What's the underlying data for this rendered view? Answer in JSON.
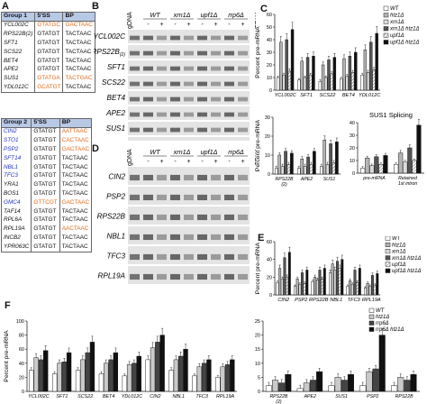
{
  "panel_labels": {
    "A": "A",
    "B": "B",
    "C": "C",
    "D": "D",
    "E": "E",
    "F": "F"
  },
  "table_group1": {
    "headers": [
      "Group 1",
      "5'SS",
      "BP"
    ],
    "rows": [
      {
        "gene": "YCL002C",
        "ss": "GTATGC",
        "bp": "GACTAAC",
        "g": "n",
        "s": "o",
        "b": "o"
      },
      {
        "gene": "RPS22B(2)",
        "ss": "GTATGT",
        "bp": "TACTAAC",
        "g": "n",
        "s": "n",
        "b": "n"
      },
      {
        "gene": "SFT1",
        "ss": "GTATGT",
        "bp": "TACTAAC",
        "g": "n",
        "s": "n",
        "b": "n"
      },
      {
        "gene": "SCS22",
        "ss": "GTATGT",
        "bp": "TACTAAC",
        "g": "n",
        "s": "n",
        "b": "n"
      },
      {
        "gene": "BET4",
        "ss": "GTATGT",
        "bp": "TACTAAC",
        "g": "n",
        "s": "n",
        "b": "n"
      },
      {
        "gene": "APE2",
        "ss": "GTATGT",
        "bp": "TACTAAC",
        "g": "n",
        "s": "n",
        "b": "n"
      },
      {
        "gene": "SUS1",
        "ss": "GTATGA",
        "bp": "TACTGAC",
        "g": "n",
        "s": "o",
        "b": "o"
      },
      {
        "gene": "YDL012C",
        "ss": "GCATGT",
        "bp": "TACTAAC",
        "g": "n",
        "s": "o",
        "b": "n"
      }
    ]
  },
  "table_group2": {
    "headers": [
      "Group 2",
      "5'SS",
      "BP"
    ],
    "rows": [
      {
        "gene": "CIN2",
        "ss": "GTATGT",
        "bp": "AATTAAC",
        "g": "b",
        "s": "n",
        "b": "o"
      },
      {
        "gene": "STO1",
        "ss": "GTATGT",
        "bp": "CACTAAC",
        "g": "b",
        "s": "n",
        "b": "o"
      },
      {
        "gene": "PSP2",
        "ss": "GTATGT",
        "bp": "GACTAAC",
        "g": "b",
        "s": "n",
        "b": "o"
      },
      {
        "gene": "SFT14",
        "ss": "GTATGT",
        "bp": "TACTAAC",
        "g": "b",
        "s": "n",
        "b": "n"
      },
      {
        "gene": "NBL1",
        "ss": "GTATGT",
        "bp": "TACTAAC",
        "g": "b",
        "s": "n",
        "b": "n"
      },
      {
        "gene": "TFC3",
        "ss": "GTATGT",
        "bp": "TACTAAC",
        "g": "b",
        "s": "n",
        "b": "n"
      },
      {
        "gene": "YRA1",
        "ss": "GTATGT",
        "bp": "TACTAAC",
        "g": "n",
        "s": "n",
        "b": "n"
      },
      {
        "gene": "BOS1",
        "ss": "GTATGT",
        "bp": "TACTAAC",
        "g": "n",
        "s": "n",
        "b": "n"
      },
      {
        "gene": "GMC4",
        "ss": "GTTCGT",
        "bp": "GACTAAC",
        "g": "b",
        "s": "o",
        "b": "o"
      },
      {
        "gene": "TAF14",
        "ss": "GTATGT",
        "bp": "TACTAAC",
        "g": "n",
        "s": "n",
        "b": "n"
      },
      {
        "gene": "RPL6A",
        "ss": "GTATGT",
        "bp": "TACTAAC",
        "g": "n",
        "s": "n",
        "b": "n"
      },
      {
        "gene": "RPL19A",
        "ss": "GTATGT",
        "bp": "AACTAAC",
        "g": "n",
        "s": "n",
        "b": "o"
      },
      {
        "gene": "INCB2",
        "ss": "GTATGT",
        "bp": "TACTAAC",
        "g": "n",
        "s": "n",
        "b": "n"
      },
      {
        "gene": "YPR063C",
        "ss": "GTATGT",
        "bp": "TACTAAC",
        "g": "n",
        "s": "n",
        "b": "n"
      }
    ]
  },
  "gel_B": {
    "genes": [
      "YCL002C",
      "RPS22B",
      "SFT1",
      "SCS22",
      "BET4",
      "APE2",
      "SUS1",
      "YDL012C"
    ],
    "subscript_rps": "(2)",
    "col_labels": [
      "gDNA",
      "WT",
      "xrn1Δ",
      "upf1Δ",
      "rrp6Δ"
    ],
    "pm": [
      "-",
      "+",
      "-",
      "+",
      "-",
      "+",
      "-",
      "+"
    ],
    "htz_label": "HTZ1"
  },
  "gel_D": {
    "genes": [
      "CIN2",
      "PSP2",
      "RPS22B",
      "NBL1",
      "TFC3",
      "RPL19A"
    ],
    "col_labels": [
      "gDNA",
      "WT",
      "xrn1Δ",
      "upf1Δ",
      "rrp6Δ"
    ],
    "pm": [
      "-",
      "+",
      "-",
      "+",
      "-",
      "+",
      "-",
      "+"
    ],
    "htz_label": "HTZ1"
  },
  "chart_data": [
    {
      "id": "C-top",
      "type": "bar",
      "ylabel": "Percent pre-mRNA",
      "ylim": [
        0,
        60
      ],
      "yticks": [
        0,
        10,
        20,
        30,
        40,
        50,
        60
      ],
      "categories": [
        "YCL002C",
        "SFT1",
        "SCS22",
        "BET4",
        "YDL012C"
      ],
      "legend_position": "top-right",
      "series": [
        {
          "name": "WT",
          "color": "#ffffff",
          "values": [
            10,
            8,
            7,
            9,
            12
          ]
        },
        {
          "name": "htz1Δ",
          "color": "#b5b5b5",
          "values": [
            38,
            23,
            20,
            25,
            32
          ]
        },
        {
          "name": "xrn1Δ",
          "color": "#d8d8d8",
          "values": [
            12,
            10,
            10,
            11,
            14
          ]
        },
        {
          "name": "xrn1Δ htz1Δ",
          "color": "#444444",
          "values": [
            40,
            26,
            24,
            27,
            38
          ]
        },
        {
          "name": "upf1Δ",
          "color": "#e8e8e8",
          "values": [
            15,
            12,
            13,
            14,
            16
          ]
        },
        {
          "name": "upf1Δ htz1Δ",
          "color": "#111111",
          "values": [
            48,
            27,
            26,
            30,
            45
          ]
        }
      ]
    },
    {
      "id": "C-bottom-left",
      "type": "bar",
      "ylabel": "Percent pre-mRNA",
      "ylim": [
        0,
        30
      ],
      "yticks": [
        0,
        10,
        20,
        30
      ],
      "categories": [
        "RPS22B (2)",
        "APE2",
        "SUS1"
      ],
      "series": [
        {
          "name": "WT",
          "values": [
            3,
            3,
            4
          ]
        },
        {
          "name": "htz1Δ",
          "values": [
            10,
            8,
            18
          ]
        },
        {
          "name": "xrn1Δ",
          "values": [
            4,
            4,
            5
          ]
        },
        {
          "name": "xrn1Δ htz1Δ",
          "values": [
            12,
            9,
            16
          ]
        },
        {
          "name": "upf1Δ",
          "values": [
            5,
            5,
            6
          ]
        },
        {
          "name": "upf1Δ htz1Δ",
          "values": [
            11,
            12,
            17
          ]
        }
      ]
    },
    {
      "id": "C-bottom-right",
      "type": "bar",
      "title": "SUS1 Splicing",
      "ylim": [
        0,
        40
      ],
      "yticks": [
        0,
        10,
        20,
        30,
        40
      ],
      "categories": [
        "pre-mRNA",
        "Retained 1st intron"
      ],
      "series": [
        {
          "name": "WT",
          "values": [
            4,
            7
          ]
        },
        {
          "name": "htz1Δ",
          "values": [
            12,
            16
          ]
        },
        {
          "name": "xrn1Δ",
          "values": [
            6,
            9
          ]
        },
        {
          "name": "xrn1Δ htz1Δ",
          "values": [
            13,
            20
          ]
        },
        {
          "name": "upf1Δ",
          "values": [
            7,
            10
          ]
        },
        {
          "name": "upf1Δ htz1Δ",
          "values": [
            14,
            38
          ]
        }
      ]
    },
    {
      "id": "E",
      "type": "bar",
      "ylabel": "Percent pre-mRNA",
      "ylim": [
        0,
        60
      ],
      "yticks": [
        0,
        20,
        40,
        60
      ],
      "categories": [
        "CIN2",
        "PSP2",
        "RPS22B",
        "NBL1",
        "TFC3",
        "RPL19A"
      ],
      "legend_position": "top-right",
      "series": [
        {
          "name": "WT",
          "values": [
            14,
            10,
            15,
            25,
            10,
            8
          ]
        },
        {
          "name": "htz1Δ",
          "values": [
            30,
            18,
            20,
            35,
            16,
            13
          ]
        },
        {
          "name": "xrn1Δ",
          "values": [
            18,
            12,
            17,
            28,
            12,
            10
          ]
        },
        {
          "name": "xrn1Δ htz1Δ",
          "values": [
            42,
            25,
            28,
            38,
            28,
            22
          ]
        },
        {
          "name": "upf1Δ",
          "values": [
            20,
            13,
            18,
            30,
            14,
            11
          ]
        },
        {
          "name": "upf1Δ htz1Δ",
          "values": [
            48,
            28,
            30,
            40,
            30,
            24
          ]
        }
      ]
    },
    {
      "id": "F-left",
      "type": "bar",
      "ylabel": "Percent pre-mRNA",
      "ylim": [
        0,
        100
      ],
      "yticks": [
        0,
        20,
        40,
        60,
        80,
        100
      ],
      "categories": [
        "YCL002C",
        "SFT1",
        "SCS22",
        "BET4",
        "YDL012C",
        "CIN2",
        "NBL1",
        "TFC3",
        "RPL19A"
      ],
      "series": [
        {
          "name": "WT",
          "values": [
            30,
            25,
            30,
            25,
            22,
            45,
            30,
            22,
            20
          ]
        },
        {
          "name": "htz1Δ",
          "values": [
            48,
            40,
            45,
            40,
            38,
            62,
            45,
            35,
            35
          ]
        },
        {
          "name": "rrp6Δ",
          "values": [
            45,
            42,
            55,
            45,
            40,
            70,
            50,
            40,
            38
          ]
        },
        {
          "name": "rrp6Δ htz1Δ",
          "values": [
            58,
            55,
            70,
            55,
            50,
            80,
            60,
            45,
            45
          ]
        }
      ]
    },
    {
      "id": "F-right",
      "type": "bar",
      "ylim": [
        0,
        25
      ],
      "yticks": [
        0,
        5,
        10,
        15,
        20,
        25
      ],
      "categories": [
        "RPS22B (2)",
        "APE2",
        "SUS1",
        "PSP2",
        "RPS22B"
      ],
      "legend_position": "top-right",
      "series": [
        {
          "name": "WT",
          "color": "#ffffff",
          "values": [
            2,
            1,
            2,
            2,
            2
          ]
        },
        {
          "name": "htz1Δ",
          "color": "#b5b5b5",
          "values": [
            4,
            3,
            5,
            7,
            5
          ]
        },
        {
          "name": "rrp6Δ",
          "color": "#555555",
          "values": [
            3,
            4,
            4,
            8,
            4
          ]
        },
        {
          "name": "rrp6Δ htz1Δ",
          "color": "#111111",
          "values": [
            6,
            7,
            6,
            20,
            6
          ]
        }
      ]
    }
  ]
}
